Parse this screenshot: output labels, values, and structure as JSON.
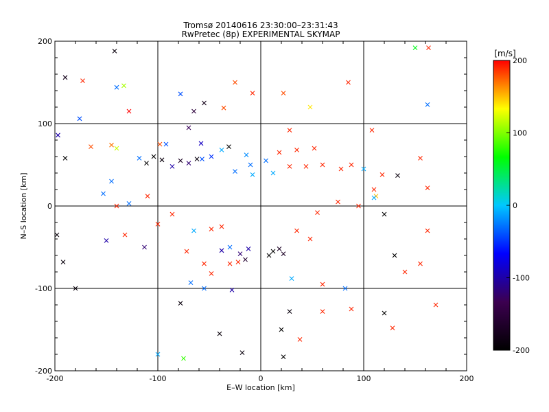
{
  "chart_data": {
    "type": "scatter",
    "title": "Tromsø 20140616 23:30:00–23:31:43",
    "subtitle": "RwPretec (8p) EXPERIMENTAL SKYMAP",
    "xlabel": "E–W location [km]",
    "ylabel": "N–S location [km]",
    "xlim": [
      -200,
      200
    ],
    "ylim": [
      -200,
      200
    ],
    "xticks": [
      "-200",
      "-100",
      "0",
      "100",
      "200"
    ],
    "yticks": [
      "-200",
      "-100",
      "0",
      "100",
      "200"
    ],
    "grid": true,
    "markers": [
      "dot",
      "x"
    ],
    "colorbar": {
      "label": "[m/s]",
      "range": [
        -200,
        200
      ],
      "ticks": [
        "-200",
        "-100",
        "0",
        "100",
        "200"
      ],
      "colormap": [
        "#000000",
        "#3c0050",
        "#0000ff",
        "#00c8ff",
        "#00ff00",
        "#ffff00",
        "#ff0000"
      ]
    },
    "points": [
      [
        -142,
        188,
        -190,
        "x"
      ],
      [
        -190,
        156,
        -180,
        "x"
      ],
      [
        -173,
        152,
        190,
        "x"
      ],
      [
        -140,
        144,
        -30,
        "x"
      ],
      [
        -133,
        146,
        110,
        "x"
      ],
      [
        -128,
        115,
        200,
        "x"
      ],
      [
        -176,
        106,
        -40,
        "x"
      ],
      [
        -197,
        86,
        -100,
        "x"
      ],
      [
        -165,
        72,
        180,
        "x"
      ],
      [
        -145,
        74,
        170,
        "x"
      ],
      [
        -140,
        70,
        120,
        "x"
      ],
      [
        -190,
        58,
        -200,
        "x"
      ],
      [
        -118,
        58,
        -30,
        "x"
      ],
      [
        -111,
        52,
        -200,
        "x"
      ],
      [
        -104,
        60,
        -200,
        "x"
      ],
      [
        -96,
        56,
        -190,
        "x"
      ],
      [
        -86,
        48,
        -100,
        "x"
      ],
      [
        -78,
        55,
        -170,
        "x"
      ],
      [
        -70,
        52,
        -120,
        "x"
      ],
      [
        -62,
        57,
        -190,
        "x"
      ],
      [
        -57,
        57,
        -40,
        "x"
      ],
      [
        -48,
        60,
        -50,
        "x"
      ],
      [
        -38,
        68,
        -10,
        "x"
      ],
      [
        -31,
        72,
        -200,
        "x"
      ],
      [
        -58,
        76,
        -90,
        "x"
      ],
      [
        -92,
        75,
        -40,
        "x"
      ],
      [
        -98,
        75,
        180,
        "x"
      ],
      [
        -70,
        95,
        -130,
        "x"
      ],
      [
        -65,
        115,
        -150,
        "x"
      ],
      [
        -78,
        136,
        -40,
        "x"
      ],
      [
        -55,
        125,
        -180,
        "x"
      ],
      [
        -36,
        119,
        180,
        "x"
      ],
      [
        -25,
        150,
        180,
        "x"
      ],
      [
        -8,
        137,
        190,
        "x"
      ],
      [
        22,
        137,
        180,
        "x"
      ],
      [
        48,
        120,
        140,
        "x"
      ],
      [
        85,
        150,
        190,
        "x"
      ],
      [
        150,
        192,
        60,
        "x"
      ],
      [
        163,
        192,
        190,
        "x"
      ],
      [
        162,
        123,
        -30,
        "x"
      ],
      [
        108,
        92,
        190,
        "x"
      ],
      [
        28,
        92,
        190,
        "x"
      ],
      [
        18,
        65,
        190,
        "x"
      ],
      [
        35,
        68,
        190,
        "x"
      ],
      [
        52,
        70,
        190,
        "x"
      ],
      [
        28,
        48,
        190,
        "x"
      ],
      [
        44,
        48,
        190,
        "x"
      ],
      [
        60,
        50,
        190,
        "x"
      ],
      [
        78,
        45,
        190,
        "x"
      ],
      [
        88,
        50,
        190,
        "x"
      ],
      [
        100,
        45,
        -10,
        "x"
      ],
      [
        118,
        38,
        190,
        "x"
      ],
      [
        133,
        37,
        -190,
        "x"
      ],
      [
        155,
        58,
        190,
        "x"
      ],
      [
        162,
        22,
        190,
        "x"
      ],
      [
        110,
        20,
        190,
        "x"
      ],
      [
        112,
        12,
        150,
        "x"
      ],
      [
        110,
        10,
        -10,
        "x"
      ],
      [
        95,
        0,
        190,
        "x"
      ],
      [
        75,
        5,
        190,
        "x"
      ],
      [
        55,
        -8,
        190,
        "x"
      ],
      [
        35,
        -30,
        190,
        "x"
      ],
      [
        48,
        -40,
        190,
        "x"
      ],
      [
        18,
        -52,
        -170,
        "x"
      ],
      [
        12,
        -55,
        -200,
        "x"
      ],
      [
        22,
        -58,
        -170,
        "x"
      ],
      [
        8,
        -60,
        -200,
        "x"
      ],
      [
        -12,
        -52,
        -100,
        "x"
      ],
      [
        -20,
        -58,
        -120,
        "x"
      ],
      [
        -15,
        -65,
        -160,
        "x"
      ],
      [
        -30,
        -50,
        -30,
        "x"
      ],
      [
        -38,
        -54,
        -100,
        "x"
      ],
      [
        -30,
        -70,
        190,
        "x"
      ],
      [
        -22,
        -68,
        190,
        "x"
      ],
      [
        -48,
        -82,
        190,
        "x"
      ],
      [
        -55,
        -70,
        190,
        "x"
      ],
      [
        -72,
        -55,
        190,
        "x"
      ],
      [
        -38,
        -25,
        190,
        "x"
      ],
      [
        -48,
        -28,
        190,
        "x"
      ],
      [
        -65,
        -30,
        -10,
        "x"
      ],
      [
        -86,
        -10,
        190,
        "x"
      ],
      [
        -100,
        -22,
        190,
        "x"
      ],
      [
        -113,
        -50,
        -120,
        "x"
      ],
      [
        -132,
        -35,
        190,
        "x"
      ],
      [
        -150,
        -42,
        -100,
        "x"
      ],
      [
        -153,
        15,
        -30,
        "x"
      ],
      [
        -145,
        30,
        -30,
        "x"
      ],
      [
        -128,
        3,
        -30,
        "x"
      ],
      [
        -140,
        0,
        190,
        "x"
      ],
      [
        -110,
        12,
        190,
        "x"
      ],
      [
        -198,
        -35,
        -190,
        "x"
      ],
      [
        -192,
        -68,
        -190,
        "x"
      ],
      [
        -180,
        -100,
        -190,
        "x"
      ],
      [
        -78,
        -118,
        -190,
        "x"
      ],
      [
        -28,
        -102,
        -100,
        "x"
      ],
      [
        -40,
        -155,
        -190,
        "x"
      ],
      [
        -18,
        -178,
        -190,
        "x"
      ],
      [
        22,
        -183,
        -200,
        "x"
      ],
      [
        20,
        -150,
        -200,
        "x"
      ],
      [
        28,
        -128,
        -190,
        "x"
      ],
      [
        38,
        -162,
        190,
        "x"
      ],
      [
        60,
        -128,
        190,
        "x"
      ],
      [
        82,
        -100,
        -30,
        "x"
      ],
      [
        88,
        -125,
        190,
        "x"
      ],
      [
        120,
        -130,
        -200,
        "x"
      ],
      [
        128,
        -148,
        190,
        "x"
      ],
      [
        130,
        -60,
        -200,
        "x"
      ],
      [
        120,
        -10,
        -200,
        "x"
      ],
      [
        140,
        -80,
        190,
        "x"
      ],
      [
        155,
        -70,
        190,
        "x"
      ],
      [
        162,
        -30,
        190,
        "x"
      ],
      [
        170,
        -120,
        190,
        "x"
      ],
      [
        -68,
        -93,
        -30,
        "x"
      ],
      [
        -55,
        -100,
        -30,
        "x"
      ],
      [
        -100,
        -180,
        -10,
        "x"
      ],
      [
        -75,
        -185,
        80,
        "x"
      ],
      [
        30,
        -88,
        -10,
        "x"
      ],
      [
        60,
        -95,
        190,
        "x"
      ],
      [
        -25,
        42,
        -30,
        "x"
      ],
      [
        -10,
        50,
        -30,
        "x"
      ],
      [
        5,
        55,
        -30,
        "x"
      ],
      [
        -8,
        38,
        -10,
        "x"
      ],
      [
        12,
        40,
        -10,
        "x"
      ],
      [
        -14,
        62,
        -20,
        "x"
      ]
    ]
  }
}
